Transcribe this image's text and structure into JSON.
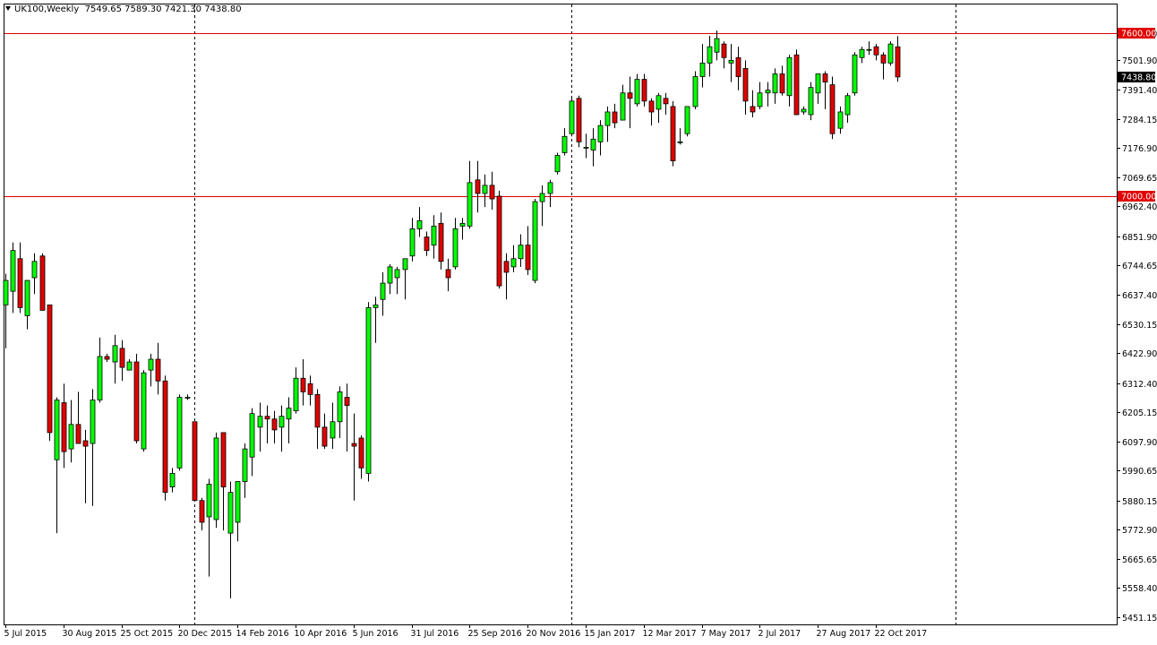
{
  "header": {
    "symbol_timeframe": "UK100,Weekly",
    "ohlc": "7549.65 7589.30 7421.30 7438.80"
  },
  "colors": {
    "background": "#ffffff",
    "bull": "#00ff00",
    "bear": "#e00000",
    "wick": "#000000",
    "hline": "#e00000",
    "axis": "#000000"
  },
  "chart_data": {
    "type": "candlestick",
    "title": "",
    "xlabel": "",
    "ylabel": "",
    "ylim": [
      5451.15,
      7660
    ],
    "y_ticks": [
      "7600.00",
      "7501.90",
      "7391.40",
      "7284.15",
      "7176.90",
      "7069.65",
      "6962.40",
      "6851.90",
      "6744.65",
      "6637.40",
      "6530.15",
      "6422.90",
      "6312.40",
      "6205.15",
      "6097.90",
      "5990.65",
      "5880.15",
      "5772.90",
      "5665.65",
      "5558.40",
      "5451.15"
    ],
    "x_ticks": [
      {
        "label": "5 Jul 2015",
        "index": 0
      },
      {
        "label": "30 Aug 2015",
        "index": 8
      },
      {
        "label": "25 Oct 2015",
        "index": 16
      },
      {
        "label": "20 Dec 2015",
        "index": 24
      },
      {
        "label": "14 Feb 2016",
        "index": 32
      },
      {
        "label": "10 Apr 2016",
        "index": 40
      },
      {
        "label": "5 Jun 2016",
        "index": 48
      },
      {
        "label": "31 Jul 2016",
        "index": 56
      },
      {
        "label": "25 Sep 2016",
        "index": 64
      },
      {
        "label": "20 Nov 2016",
        "index": 72
      },
      {
        "label": "15 Jan 2017",
        "index": 80
      },
      {
        "label": "12 Mar 2017",
        "index": 88
      },
      {
        "label": "7 May 2017",
        "index": 96
      },
      {
        "label": "2 Jul 2017",
        "index": 104
      },
      {
        "label": "27 Aug 2017",
        "index": 112
      },
      {
        "label": "22 Oct 2017",
        "index": 120
      }
    ],
    "period_separators": [
      26,
      78,
      131
    ],
    "horizontal_lines": [
      {
        "value": 7600.0,
        "label": "7600.00"
      },
      {
        "value": 7000.0,
        "label": "7000.00"
      }
    ],
    "current_price": {
      "value": 7438.8,
      "label": "7438.80"
    },
    "candles": [
      {
        "o": 6600,
        "h": 6715,
        "l": 6440,
        "c": 6690
      },
      {
        "o": 6650,
        "h": 6830,
        "l": 6570,
        "c": 6800
      },
      {
        "o": 6770,
        "h": 6830,
        "l": 6570,
        "c": 6590
      },
      {
        "o": 6560,
        "h": 6690,
        "l": 6510,
        "c": 6690
      },
      {
        "o": 6700,
        "h": 6790,
        "l": 6640,
        "c": 6760
      },
      {
        "o": 6780,
        "h": 6790,
        "l": 6580,
        "c": 6580
      },
      {
        "o": 6600,
        "h": 6600,
        "l": 6100,
        "c": 6130
      },
      {
        "o": 6030,
        "h": 6260,
        "l": 5760,
        "c": 6250
      },
      {
        "o": 6240,
        "h": 6310,
        "l": 6000,
        "c": 6060
      },
      {
        "o": 6070,
        "h": 6250,
        "l": 6020,
        "c": 6160
      },
      {
        "o": 6160,
        "h": 6280,
        "l": 6100,
        "c": 6090
      },
      {
        "o": 6100,
        "h": 6140,
        "l": 5870,
        "c": 6080
      },
      {
        "o": 6090,
        "h": 6290,
        "l": 5860,
        "c": 6250
      },
      {
        "o": 6250,
        "h": 6480,
        "l": 6240,
        "c": 6410
      },
      {
        "o": 6410,
        "h": 6420,
        "l": 6390,
        "c": 6400
      },
      {
        "o": 6390,
        "h": 6490,
        "l": 6310,
        "c": 6450
      },
      {
        "o": 6440,
        "h": 6470,
        "l": 6320,
        "c": 6370
      },
      {
        "o": 6360,
        "h": 6400,
        "l": 6360,
        "c": 6390
      },
      {
        "o": 6390,
        "h": 6420,
        "l": 6090,
        "c": 6100
      },
      {
        "o": 6070,
        "h": 6360,
        "l": 6060,
        "c": 6350
      },
      {
        "o": 6360,
        "h": 6420,
        "l": 6300,
        "c": 6400
      },
      {
        "o": 6400,
        "h": 6460,
        "l": 6270,
        "c": 6320
      },
      {
        "o": 6320,
        "h": 6340,
        "l": 5880,
        "c": 5910
      },
      {
        "o": 5930,
        "h": 6000,
        "l": 5910,
        "c": 5980
      },
      {
        "o": 6000,
        "h": 6270,
        "l": 5990,
        "c": 6260
      },
      {
        "o": 6260,
        "h": 6270,
        "l": 6250,
        "c": 6260
      },
      {
        "o": 6170,
        "h": 6170,
        "l": 5880,
        "c": 5880
      },
      {
        "o": 5880,
        "h": 5890,
        "l": 5770,
        "c": 5800
      },
      {
        "o": 5820,
        "h": 5960,
        "l": 5600,
        "c": 5940
      },
      {
        "o": 5810,
        "h": 6130,
        "l": 5780,
        "c": 6110
      },
      {
        "o": 6130,
        "h": 6130,
        "l": 5770,
        "c": 5930
      },
      {
        "o": 5760,
        "h": 5950,
        "l": 5520,
        "c": 5910
      },
      {
        "o": 5800,
        "h": 5950,
        "l": 5730,
        "c": 5950
      },
      {
        "o": 5950,
        "h": 6090,
        "l": 5890,
        "c": 6070
      },
      {
        "o": 6040,
        "h": 6220,
        "l": 5970,
        "c": 6200
      },
      {
        "o": 6150,
        "h": 6240,
        "l": 6060,
        "c": 6190
      },
      {
        "o": 6190,
        "h": 6230,
        "l": 6090,
        "c": 6180
      },
      {
        "o": 6180,
        "h": 6210,
        "l": 6090,
        "c": 6140
      },
      {
        "o": 6150,
        "h": 6230,
        "l": 6060,
        "c": 6190
      },
      {
        "o": 6180,
        "h": 6260,
        "l": 6090,
        "c": 6220
      },
      {
        "o": 6210,
        "h": 6370,
        "l": 6200,
        "c": 6330
      },
      {
        "o": 6330,
        "h": 6400,
        "l": 6230,
        "c": 6280
      },
      {
        "o": 6310,
        "h": 6340,
        "l": 6230,
        "c": 6270
      },
      {
        "o": 6270,
        "h": 6290,
        "l": 6070,
        "c": 6150
      },
      {
        "o": 6150,
        "h": 6200,
        "l": 6070,
        "c": 6080
      },
      {
        "o": 6110,
        "h": 6240,
        "l": 6070,
        "c": 6170
      },
      {
        "o": 6170,
        "h": 6300,
        "l": 6110,
        "c": 6280
      },
      {
        "o": 6260,
        "h": 6310,
        "l": 6060,
        "c": 6230
      },
      {
        "o": 6090,
        "h": 6200,
        "l": 5880,
        "c": 6080
      },
      {
        "o": 6110,
        "h": 6120,
        "l": 5960,
        "c": 6000
      },
      {
        "o": 5980,
        "h": 6610,
        "l": 5950,
        "c": 6590
      },
      {
        "o": 6590,
        "h": 6630,
        "l": 6460,
        "c": 6600
      },
      {
        "o": 6620,
        "h": 6720,
        "l": 6560,
        "c": 6680
      },
      {
        "o": 6680,
        "h": 6750,
        "l": 6640,
        "c": 6740
      },
      {
        "o": 6700,
        "h": 6740,
        "l": 6640,
        "c": 6730
      },
      {
        "o": 6730,
        "h": 6770,
        "l": 6620,
        "c": 6770
      },
      {
        "o": 6780,
        "h": 6920,
        "l": 6760,
        "c": 6880
      },
      {
        "o": 6880,
        "h": 6960,
        "l": 6850,
        "c": 6910
      },
      {
        "o": 6850,
        "h": 6870,
        "l": 6780,
        "c": 6800
      },
      {
        "o": 6820,
        "h": 6930,
        "l": 6770,
        "c": 6890
      },
      {
        "o": 6900,
        "h": 6940,
        "l": 6730,
        "c": 6760
      },
      {
        "o": 6730,
        "h": 6770,
        "l": 6650,
        "c": 6700
      },
      {
        "o": 6740,
        "h": 6920,
        "l": 6730,
        "c": 6880
      },
      {
        "o": 6890,
        "h": 6920,
        "l": 6840,
        "c": 6900
      },
      {
        "o": 6890,
        "h": 7130,
        "l": 6880,
        "c": 7050
      },
      {
        "o": 7060,
        "h": 7130,
        "l": 6940,
        "c": 7010
      },
      {
        "o": 7010,
        "h": 7080,
        "l": 6960,
        "c": 7040
      },
      {
        "o": 7040,
        "h": 7090,
        "l": 6950,
        "c": 6990
      },
      {
        "o": 7000,
        "h": 7020,
        "l": 6660,
        "c": 6670
      },
      {
        "o": 6760,
        "h": 6790,
        "l": 6620,
        "c": 6720
      },
      {
        "o": 6740,
        "h": 6820,
        "l": 6720,
        "c": 6770
      },
      {
        "o": 6770,
        "h": 6860,
        "l": 6740,
        "c": 6820
      },
      {
        "o": 6820,
        "h": 6890,
        "l": 6710,
        "c": 6730
      },
      {
        "o": 6690,
        "h": 6990,
        "l": 6680,
        "c": 6980
      },
      {
        "o": 6980,
        "h": 7040,
        "l": 6890,
        "c": 7010
      },
      {
        "o": 7010,
        "h": 7060,
        "l": 6960,
        "c": 7050
      },
      {
        "o": 7090,
        "h": 7160,
        "l": 7080,
        "c": 7150
      },
      {
        "o": 7160,
        "h": 7250,
        "l": 7150,
        "c": 7220
      },
      {
        "o": 7230,
        "h": 7360,
        "l": 7220,
        "c": 7350
      },
      {
        "o": 7360,
        "h": 7370,
        "l": 7180,
        "c": 7200
      },
      {
        "o": 7180,
        "h": 7230,
        "l": 7140,
        "c": 7180
      },
      {
        "o": 7170,
        "h": 7250,
        "l": 7110,
        "c": 7210
      },
      {
        "o": 7200,
        "h": 7280,
        "l": 7150,
        "c": 7260
      },
      {
        "o": 7260,
        "h": 7330,
        "l": 7200,
        "c": 7310
      },
      {
        "o": 7310,
        "h": 7340,
        "l": 7250,
        "c": 7270
      },
      {
        "o": 7280,
        "h": 7410,
        "l": 7280,
        "c": 7380
      },
      {
        "o": 7380,
        "h": 7440,
        "l": 7250,
        "c": 7360
      },
      {
        "o": 7340,
        "h": 7450,
        "l": 7330,
        "c": 7430
      },
      {
        "o": 7430,
        "h": 7450,
        "l": 7330,
        "c": 7350
      },
      {
        "o": 7350,
        "h": 7360,
        "l": 7260,
        "c": 7310
      },
      {
        "o": 7320,
        "h": 7380,
        "l": 7270,
        "c": 7370
      },
      {
        "o": 7360,
        "h": 7380,
        "l": 7300,
        "c": 7340
      },
      {
        "o": 7330,
        "h": 7350,
        "l": 7110,
        "c": 7130
      },
      {
        "o": 7200,
        "h": 7250,
        "l": 7190,
        "c": 7200
      },
      {
        "o": 7230,
        "h": 7330,
        "l": 7220,
        "c": 7330
      },
      {
        "o": 7330,
        "h": 7460,
        "l": 7320,
        "c": 7440
      },
      {
        "o": 7440,
        "h": 7560,
        "l": 7400,
        "c": 7490
      },
      {
        "o": 7490,
        "h": 7590,
        "l": 7440,
        "c": 7550
      },
      {
        "o": 7530,
        "h": 7610,
        "l": 7500,
        "c": 7580
      },
      {
        "o": 7560,
        "h": 7570,
        "l": 7470,
        "c": 7510
      },
      {
        "o": 7490,
        "h": 7560,
        "l": 7420,
        "c": 7500
      },
      {
        "o": 7510,
        "h": 7550,
        "l": 7390,
        "c": 7440
      },
      {
        "o": 7470,
        "h": 7500,
        "l": 7300,
        "c": 7350
      },
      {
        "o": 7330,
        "h": 7390,
        "l": 7290,
        "c": 7310
      },
      {
        "o": 7330,
        "h": 7420,
        "l": 7320,
        "c": 7380
      },
      {
        "o": 7380,
        "h": 7420,
        "l": 7330,
        "c": 7390
      },
      {
        "o": 7380,
        "h": 7470,
        "l": 7340,
        "c": 7450
      },
      {
        "o": 7450,
        "h": 7480,
        "l": 7370,
        "c": 7380
      },
      {
        "o": 7370,
        "h": 7520,
        "l": 7330,
        "c": 7510
      },
      {
        "o": 7520,
        "h": 7540,
        "l": 7300,
        "c": 7300
      },
      {
        "o": 7310,
        "h": 7330,
        "l": 7300,
        "c": 7320
      },
      {
        "o": 7300,
        "h": 7420,
        "l": 7280,
        "c": 7400
      },
      {
        "o": 7380,
        "h": 7450,
        "l": 7340,
        "c": 7450
      },
      {
        "o": 7450,
        "h": 7460,
        "l": 7320,
        "c": 7420
      },
      {
        "o": 7410,
        "h": 7440,
        "l": 7210,
        "c": 7230
      },
      {
        "o": 7250,
        "h": 7330,
        "l": 7230,
        "c": 7310
      },
      {
        "o": 7300,
        "h": 7380,
        "l": 7270,
        "c": 7370
      },
      {
        "o": 7380,
        "h": 7530,
        "l": 7370,
        "c": 7520
      },
      {
        "o": 7510,
        "h": 7550,
        "l": 7490,
        "c": 7540
      },
      {
        "o": 7540,
        "h": 7570,
        "l": 7520,
        "c": 7540
      },
      {
        "o": 7550,
        "h": 7560,
        "l": 7500,
        "c": 7520
      },
      {
        "o": 7520,
        "h": 7530,
        "l": 7430,
        "c": 7490
      },
      {
        "o": 7490,
        "h": 7570,
        "l": 7480,
        "c": 7560
      },
      {
        "o": 7549.65,
        "h": 7589.3,
        "l": 7421.3,
        "c": 7438.8
      }
    ]
  }
}
